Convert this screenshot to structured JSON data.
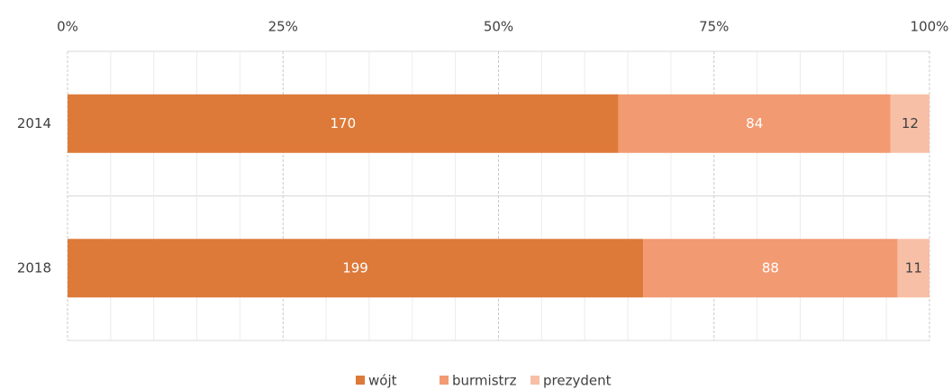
{
  "chart_data": {
    "type": "stacked-bar-100",
    "orientation": "horizontal",
    "categories": [
      "2014",
      "2018"
    ],
    "series": [
      {
        "name": "wójt",
        "color": "#dd7a3a",
        "values": [
          170,
          199
        ]
      },
      {
        "name": "burmistrz",
        "color": "#f29a72",
        "values": [
          84,
          88
        ]
      },
      {
        "name": "prezydent",
        "color": "#f7bfa6",
        "values": [
          12,
          11
        ]
      }
    ],
    "xlim": [
      0,
      100
    ],
    "xticks": [
      {
        "value": 0,
        "label": "0%"
      },
      {
        "value": 25,
        "label": "25%"
      },
      {
        "value": 50,
        "label": "50%"
      },
      {
        "value": 75,
        "label": "75%"
      },
      {
        "value": 100,
        "label": "100%"
      }
    ],
    "grid": true,
    "legend": "bottom"
  }
}
